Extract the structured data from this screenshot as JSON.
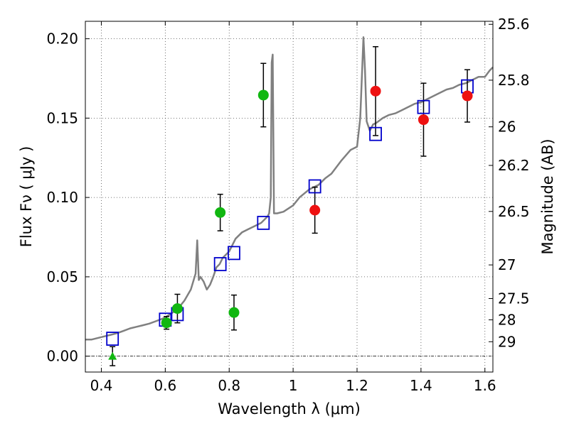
{
  "chart_data": {
    "type": "scatter",
    "xlabel": "Wavelength  λ (μm)",
    "ylabel": "Flux  Fν  ( μJy )",
    "ylabel_right": "Magnitude (AB)",
    "xlim": [
      0.35,
      1.625
    ],
    "ylim": [
      -0.01,
      0.211
    ],
    "grid": true,
    "x_ticks": [
      0.4,
      0.6,
      0.8,
      1.0,
      1.2,
      1.4,
      1.6
    ],
    "x_tick_labels": [
      "0.4",
      "0.6",
      "0.8",
      "1",
      "1.2",
      "1.4",
      "1.6"
    ],
    "y_ticks": [
      0.0,
      0.05,
      0.1,
      0.15,
      0.2
    ],
    "y_tick_labels": [
      "0.00",
      "0.05",
      "0.10",
      "0.15",
      "0.20"
    ],
    "right_ticks": [
      {
        "label": "25.6",
        "flux": 0.2091
      },
      {
        "label": "25.8",
        "flux": 0.1739
      },
      {
        "label": "26",
        "flux": 0.1445
      },
      {
        "label": "26.2",
        "flux": 0.1202
      },
      {
        "label": "26.5",
        "flux": 0.0912
      },
      {
        "label": "27",
        "flux": 0.0575
      },
      {
        "label": "27.5",
        "flux": 0.0363
      },
      {
        "label": "28",
        "flux": 0.0229
      },
      {
        "label": "29",
        "flux": 0.0091
      }
    ],
    "colors": {
      "model": "#808080",
      "green": "#11b711",
      "red": "#ee1111",
      "blue": "#0000cc",
      "errorbar": "#000000",
      "baseline": "#000000"
    },
    "series": [
      {
        "kind": "model_spectrum",
        "x": [
          0.35,
          0.37,
          0.39,
          0.41,
          0.43,
          0.45,
          0.47,
          0.49,
          0.51,
          0.53,
          0.55,
          0.57,
          0.59,
          0.6,
          0.62,
          0.64,
          0.66,
          0.68,
          0.695,
          0.7,
          0.705,
          0.71,
          0.72,
          0.73,
          0.74,
          0.75,
          0.76,
          0.77,
          0.78,
          0.79,
          0.8,
          0.81,
          0.82,
          0.84,
          0.86,
          0.88,
          0.9,
          0.91,
          0.92,
          0.925,
          0.93,
          0.933,
          0.936,
          0.94,
          0.95,
          0.97,
          1.0,
          1.02,
          1.05,
          1.08,
          1.1,
          1.12,
          1.15,
          1.18,
          1.2,
          1.21,
          1.22,
          1.225,
          1.23,
          1.24,
          1.25,
          1.26,
          1.28,
          1.3,
          1.32,
          1.34,
          1.36,
          1.38,
          1.4,
          1.42,
          1.45,
          1.48,
          1.5,
          1.52,
          1.54,
          1.56,
          1.58,
          1.6,
          1.615,
          1.625
        ],
        "y": [
          0.0105,
          0.0105,
          0.0115,
          0.0125,
          0.0135,
          0.0145,
          0.016,
          0.0175,
          0.0185,
          0.0195,
          0.0205,
          0.022,
          0.0235,
          0.0245,
          0.027,
          0.03,
          0.035,
          0.042,
          0.052,
          0.073,
          0.048,
          0.05,
          0.047,
          0.042,
          0.045,
          0.05,
          0.056,
          0.058,
          0.062,
          0.064,
          0.066,
          0.07,
          0.074,
          0.078,
          0.08,
          0.082,
          0.084,
          0.086,
          0.088,
          0.09,
          0.1,
          0.185,
          0.19,
          0.09,
          0.09,
          0.091,
          0.095,
          0.1,
          0.105,
          0.108,
          0.112,
          0.115,
          0.123,
          0.13,
          0.132,
          0.15,
          0.201,
          0.18,
          0.148,
          0.142,
          0.146,
          0.147,
          0.15,
          0.152,
          0.153,
          0.155,
          0.157,
          0.159,
          0.16,
          0.162,
          0.165,
          0.168,
          0.169,
          0.171,
          0.172,
          0.174,
          0.176,
          0.176,
          0.18,
          0.182
        ]
      },
      {
        "kind": "model_photometry",
        "marker": "square",
        "x": [
          0.435,
          0.6,
          0.638,
          0.772,
          0.815,
          0.907,
          1.068,
          1.258,
          1.408,
          1.545
        ],
        "y": [
          0.011,
          0.023,
          0.0265,
          0.058,
          0.065,
          0.084,
          0.107,
          0.14,
          0.157,
          0.17
        ]
      },
      {
        "kind": "observed_hst",
        "marker": "circle",
        "x": [
          0.604,
          0.638,
          0.772,
          0.815,
          0.907
        ],
        "y": [
          0.021,
          0.03,
          0.0905,
          0.0275,
          0.1645
        ],
        "yerr": [
          0.004,
          0.009,
          0.0115,
          0.011,
          0.02
        ]
      },
      {
        "kind": "observed_ir",
        "marker": "circle",
        "x": [
          1.068,
          1.258,
          1.408,
          1.545
        ],
        "y": [
          0.092,
          0.167,
          0.149,
          0.164
        ],
        "yerr": [
          0.0145,
          0.028,
          0.023,
          0.0165
        ]
      },
      {
        "kind": "upper_limit",
        "marker": "triangle",
        "x": [
          0.435
        ],
        "y": [
          0.0
        ],
        "yerr": [
          0.006
        ]
      }
    ]
  }
}
